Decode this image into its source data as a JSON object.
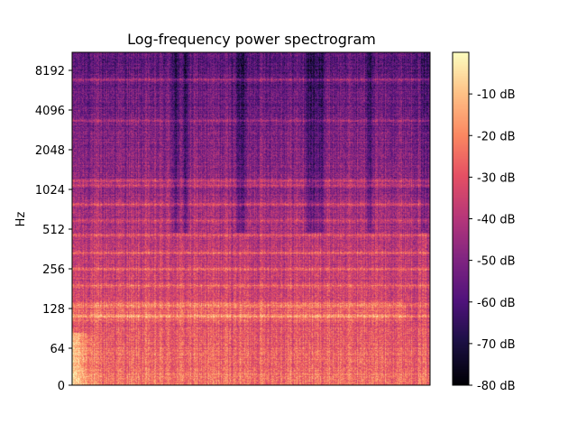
{
  "chart_data": {
    "type": "heatmap",
    "title": "Log-frequency power spectrogram",
    "xlabel": "",
    "ylabel": "Hz",
    "y_scale": "log2",
    "y_ticks": [
      {
        "value": 0,
        "label": "0"
      },
      {
        "value": 64,
        "label": "64"
      },
      {
        "value": 128,
        "label": "128"
      },
      {
        "value": 256,
        "label": "256"
      },
      {
        "value": 512,
        "label": "512"
      },
      {
        "value": 1024,
        "label": "1024"
      },
      {
        "value": 2048,
        "label": "2048"
      },
      {
        "value": 4096,
        "label": "4096"
      },
      {
        "value": 8192,
        "label": "8192"
      }
    ],
    "x_ticks": [],
    "colormap": "magma",
    "colorbar": {
      "range": [
        -80,
        0
      ],
      "unit": "dB",
      "ticks": [
        {
          "value": -10,
          "label": "-10 dB"
        },
        {
          "value": -20,
          "label": "-20 dB"
        },
        {
          "value": -30,
          "label": "-30 dB"
        },
        {
          "value": -40,
          "label": "-40 dB"
        },
        {
          "value": -50,
          "label": "-50 dB"
        },
        {
          "value": -60,
          "label": "-60 dB"
        },
        {
          "value": -70,
          "label": "-70 dB"
        },
        {
          "value": -80,
          "label": "-80 dB"
        }
      ]
    },
    "grid": false
  }
}
